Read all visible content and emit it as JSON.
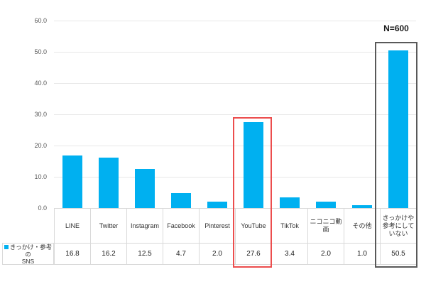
{
  "chart_data": {
    "type": "bar",
    "title": "",
    "categories": [
      "LINE",
      "Twitter",
      "Instagram",
      "Facebook",
      "Pinterest",
      "YouTube",
      "TikTok",
      "ニコニコ動画",
      "その他",
      "きっかけや参考にしていない"
    ],
    "series": [
      {
        "name": "きっかけ・参考のSNS",
        "values": [
          16.8,
          16.2,
          12.5,
          4.7,
          2.0,
          27.6,
          3.4,
          2.0,
          1.0,
          50.5
        ]
      }
    ],
    "y_ticks": [
      "60.0",
      "50.0",
      "40.0",
      "30.0",
      "20.0",
      "10.0",
      "0.0"
    ],
    "ylim": [
      0,
      60
    ],
    "grid": true,
    "bar_color": "#00B0F0",
    "legend_position": "table-row-left",
    "annotations": [
      {
        "text": "N=600",
        "target_category": "きっかけや参考にしていない"
      }
    ],
    "highlights": [
      {
        "target_category": "YouTube",
        "target_index": 5,
        "box_color": "#ec4d4d"
      },
      {
        "target_category": "きっかけや参考にしていない",
        "target_index": 9,
        "box_color": "#595959"
      }
    ]
  },
  "legend": {
    "line1": "きっかけ・参考の",
    "line2": "SNS",
    "marker_color": "#00B0F0"
  },
  "colors": {
    "bar": "#00B0F0",
    "gridline": "#e7e7e7",
    "table_border": "#d9d9d9",
    "highlight_red": "#ec4d4d",
    "highlight_dark": "#595959",
    "background": "#ffffff"
  }
}
